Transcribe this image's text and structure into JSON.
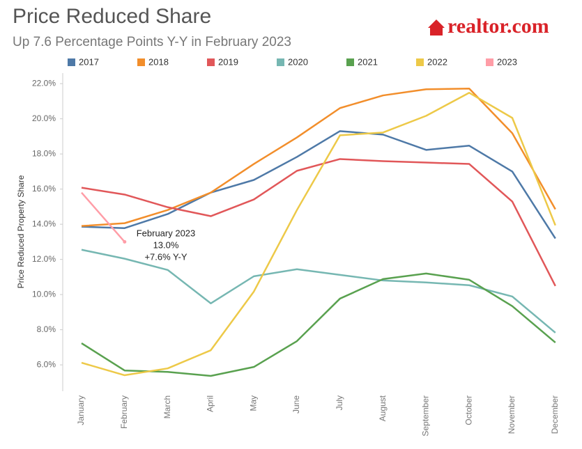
{
  "chart_data": {
    "type": "line",
    "title": "Price Reduced Share",
    "subtitle": "Up 7.6 Percentage Points Y-Y in February 2023",
    "brand": "realtor.com",
    "y_axis_label": "Price Reduced Property Share",
    "categories": [
      "January",
      "February",
      "March",
      "April",
      "May",
      "June",
      "July",
      "August",
      "September",
      "October",
      "November",
      "December"
    ],
    "series": [
      {
        "name": "2017",
        "color": "#4e79a7",
        "values": [
          13.86,
          13.78,
          14.58,
          15.8,
          16.52,
          17.83,
          19.3,
          19.1,
          18.23,
          18.47,
          17.0,
          13.19
        ]
      },
      {
        "name": "2018",
        "color": "#f28e2b",
        "values": [
          13.9,
          14.06,
          14.81,
          15.8,
          17.43,
          18.94,
          20.61,
          21.33,
          21.68,
          21.72,
          19.18,
          14.85
        ]
      },
      {
        "name": "2019",
        "color": "#e15759",
        "values": [
          16.08,
          15.69,
          14.97,
          14.46,
          15.41,
          17.04,
          17.71,
          17.59,
          17.51,
          17.43,
          15.29,
          10.49
        ]
      },
      {
        "name": "2020",
        "color": "#76b7b2",
        "values": [
          12.55,
          12.04,
          11.4,
          9.5,
          11.04,
          11.44,
          11.12,
          10.8,
          10.69,
          10.53,
          9.89,
          7.83
        ]
      },
      {
        "name": "2021",
        "color": "#59a14f",
        "values": [
          7.23,
          5.68,
          5.6,
          5.37,
          5.88,
          7.35,
          9.77,
          10.88,
          11.2,
          10.84,
          9.34,
          7.27
        ]
      },
      {
        "name": "2022",
        "color": "#edc948",
        "values": [
          6.12,
          5.41,
          5.8,
          6.83,
          10.17,
          14.81,
          19.06,
          19.22,
          20.17,
          21.48,
          20.05,
          13.94
        ]
      },
      {
        "name": "2023",
        "color": "#ff9da7",
        "values": [
          15.8,
          13.0,
          null,
          null,
          null,
          null,
          null,
          null,
          null,
          null,
          null,
          null
        ]
      }
    ],
    "annotation": {
      "title": "February 2023",
      "value_label": "13.0%",
      "change": "+7.6% Y-Y"
    },
    "ylim": [
      4.5,
      22.6
    ],
    "yticks": [
      {
        "value": 6,
        "label": "6.0%"
      },
      {
        "value": 8,
        "label": "8.0%"
      },
      {
        "value": 10,
        "label": "10.0%"
      },
      {
        "value": 12,
        "label": "12.0%"
      },
      {
        "value": 14,
        "label": "14.0%"
      },
      {
        "value": 16,
        "label": "16.0%"
      },
      {
        "value": 18,
        "label": "18.0%"
      },
      {
        "value": 20,
        "label": "20.0%"
      },
      {
        "value": 22,
        "label": "22.0%"
      }
    ],
    "grid": false
  }
}
